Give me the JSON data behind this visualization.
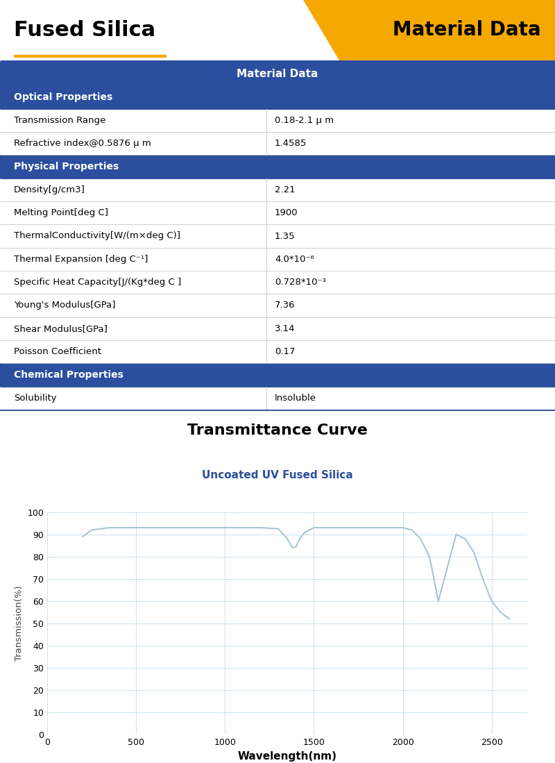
{
  "title_left": "Fused Silica",
  "title_right": "Material Data",
  "header_color": "#2B4F9E",
  "header_text_color": "#FFFFFF",
  "orange_color": "#F5A800",
  "table_header": "Material Data",
  "sections": [
    {
      "label": "Optical Properties",
      "rows": [
        [
          "Transmission Range",
          "0.18-2.1 μ m"
        ],
        [
          "Refractive index@0.5876 μ m",
          "1.4585"
        ]
      ]
    },
    {
      "label": "Physical Properties",
      "rows": [
        [
          "Density[g/cm3]",
          "2.21"
        ],
        [
          "Melting Point[deg C]",
          "1900"
        ],
        [
          "ThermalConductivity[W/(m×deg C)]",
          "1.35"
        ],
        [
          "Thermal Expansion [deg C⁻¹]",
          "4.0*10⁻⁶"
        ],
        [
          "Specific Heat Capacity[J/(Kg*deg C ]",
          "0.728*10⁻³"
        ],
        [
          "Young's Modulus[GPa]",
          "7.36"
        ],
        [
          "Shear Modulus[GPa]",
          "3.14"
        ],
        [
          "Poisson Coefficient",
          "0.17"
        ]
      ]
    },
    {
      "label": "Chemical Properties",
      "rows": [
        [
          "Solubility",
          "Insoluble"
        ]
      ]
    }
  ],
  "transmittance_title": "Transmittance Curve",
  "transmittance_subtitle": "Uncoated UV Fused Silica",
  "curve_color": "#A8C4D8",
  "xlabel": "Wavelength(nm)",
  "ylabel": "Transmission(%)",
  "xlim": [
    0,
    2700
  ],
  "ylim": [
    0,
    100
  ],
  "xticks": [
    0,
    500,
    1000,
    1500,
    2000,
    2500
  ],
  "yticks": [
    0,
    10,
    20,
    30,
    40,
    50,
    60,
    70,
    80,
    90,
    100
  ],
  "curve_x": [
    200,
    250,
    300,
    350,
    400,
    500,
    600,
    700,
    800,
    900,
    1000,
    1100,
    1200,
    1300,
    1350,
    1380,
    1400,
    1420,
    1450,
    1500,
    1600,
    1700,
    1800,
    1900,
    2000,
    2050,
    2100,
    2150,
    2200,
    2250,
    2300,
    2350,
    2400,
    2450,
    2500,
    2550,
    2600
  ],
  "curve_y": [
    89,
    92,
    92.5,
    93,
    93,
    93,
    93,
    93,
    93,
    93,
    93,
    93,
    93,
    92.5,
    88,
    84,
    84.5,
    88,
    91,
    93,
    93,
    93,
    93,
    93,
    93,
    92,
    88,
    80,
    60,
    75,
    90,
    88,
    82,
    70,
    60,
    55,
    52
  ]
}
